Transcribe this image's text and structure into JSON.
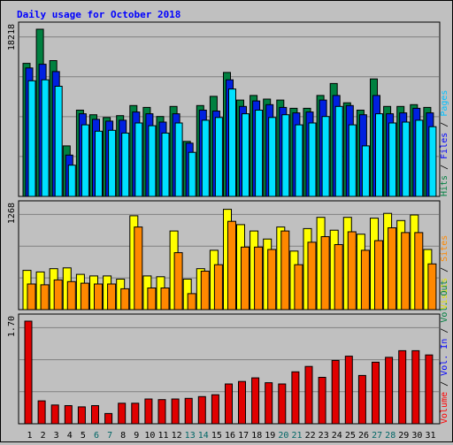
{
  "chart_data": {
    "title": "Daily usage for October 2018",
    "days": [
      "1",
      "2",
      "3",
      "4",
      "5",
      "6",
      "7",
      "8",
      "9",
      "10",
      "11",
      "12",
      "13",
      "14",
      "15",
      "16",
      "17",
      "18",
      "19",
      "20",
      "21",
      "22",
      "23",
      "24",
      "25",
      "26",
      "27",
      "28",
      "29",
      "30",
      "31"
    ],
    "weekend_days": [
      "6",
      "7",
      "13",
      "14",
      "20",
      "21",
      "27",
      "28"
    ],
    "colors": {
      "hits": "#008040",
      "files": "#0020e0",
      "pages": "#00e0ff",
      "visits": "#ffff00",
      "sites": "#ff8800",
      "volume": "#e00000",
      "weekend_label": "#006666",
      "title": "#0000ff"
    },
    "panels": [
      {
        "type": "bar",
        "max_label": "18218",
        "ymax": 18218,
        "series": [
          {
            "name": "Hits",
            "values": [
              14500,
              18218,
              14800,
              5500,
              9400,
              8900,
              8600,
              8800,
              9900,
              9700,
              8700,
              9800,
              6000,
              9900,
              10900,
              13500,
              10500,
              11000,
              10600,
              10500,
              9600,
              9600,
              11000,
              12300,
              10200,
              9400,
              12800,
              9800,
              9800,
              10000,
              9700
            ]
          },
          {
            "name": "Files",
            "values": [
              14000,
              14400,
              13600,
              4500,
              9000,
              8400,
              8200,
              8300,
              9200,
              9000,
              8100,
              9000,
              5800,
              9400,
              9300,
              12700,
              9800,
              10400,
              10000,
              9700,
              9100,
              9200,
              10500,
              11000,
              9900,
              8900,
              11000,
              9000,
              9100,
              9600,
              9100
            ]
          },
          {
            "name": "Pages",
            "values": [
              12600,
              12700,
              12000,
              3400,
              7800,
              7100,
              7200,
              6900,
              8000,
              7700,
              6900,
              8000,
              4800,
              8300,
              8600,
              11700,
              9000,
              9400,
              8600,
              8900,
              7800,
              8000,
              8700,
              9800,
              7800,
              5500,
              9000,
              8000,
              8100,
              8300,
              7600
            ]
          }
        ]
      },
      {
        "type": "bar",
        "max_label": "1268",
        "ymax": 1268,
        "series": [
          {
            "name": "Visits",
            "values": [
              490,
              470,
              510,
              520,
              440,
              420,
              420,
              380,
              1170,
              420,
              410,
              980,
              380,
              510,
              740,
              1250,
              1060,
              980,
              880,
              1030,
              730,
              1010,
              1150,
              990,
              1150,
              940,
              1140,
              1200,
              1110,
              1180,
              750
            ]
          },
          {
            "name": "Sites",
            "values": [
              320,
              310,
              370,
              350,
              330,
              320,
              320,
              260,
              1030,
              270,
              270,
              710,
              200,
              480,
              560,
              1100,
              780,
              780,
              750,
              980,
              560,
              840,
              910,
              810,
              970,
              740,
              860,
              1020,
              960,
              960,
              570
            ]
          }
        ]
      },
      {
        "type": "bar",
        "max_label": "1.70",
        "ymax": 1.7,
        "series": [
          {
            "name": "Volume",
            "values": [
              1.7,
              0.38,
              0.31,
              0.3,
              0.28,
              0.3,
              0.17,
              0.34,
              0.34,
              0.41,
              0.4,
              0.41,
              0.42,
              0.45,
              0.48,
              0.66,
              0.7,
              0.76,
              0.68,
              0.66,
              0.86,
              0.95,
              0.77,
              1.05,
              1.12,
              0.8,
              1.02,
              1.1,
              1.21,
              1.21,
              1.14
            ]
          }
        ]
      }
    ],
    "legends": [
      [
        {
          "text": "Hits",
          "color": "#008040"
        },
        {
          "text": " / ",
          "color": "#000000"
        },
        {
          "text": "Files",
          "color": "#0000ff"
        },
        {
          "text": " / ",
          "color": "#000000"
        },
        {
          "text": "Pages",
          "color": "#00c0ff"
        }
      ],
      [
        {
          "text": "Visits",
          "color": "#e0e000"
        },
        {
          "text": " / ",
          "color": "#000000"
        },
        {
          "text": "Sites",
          "color": "#ff8800"
        }
      ],
      [
        {
          "text": "Volume",
          "color": "#ff0000"
        },
        {
          "text": " / ",
          "color": "#000000"
        },
        {
          "text": "Vol. In",
          "color": "#0000ff"
        },
        {
          "text": " / ",
          "color": "#000000"
        },
        {
          "text": "Vol. Out",
          "color": "#008040"
        }
      ]
    ]
  }
}
